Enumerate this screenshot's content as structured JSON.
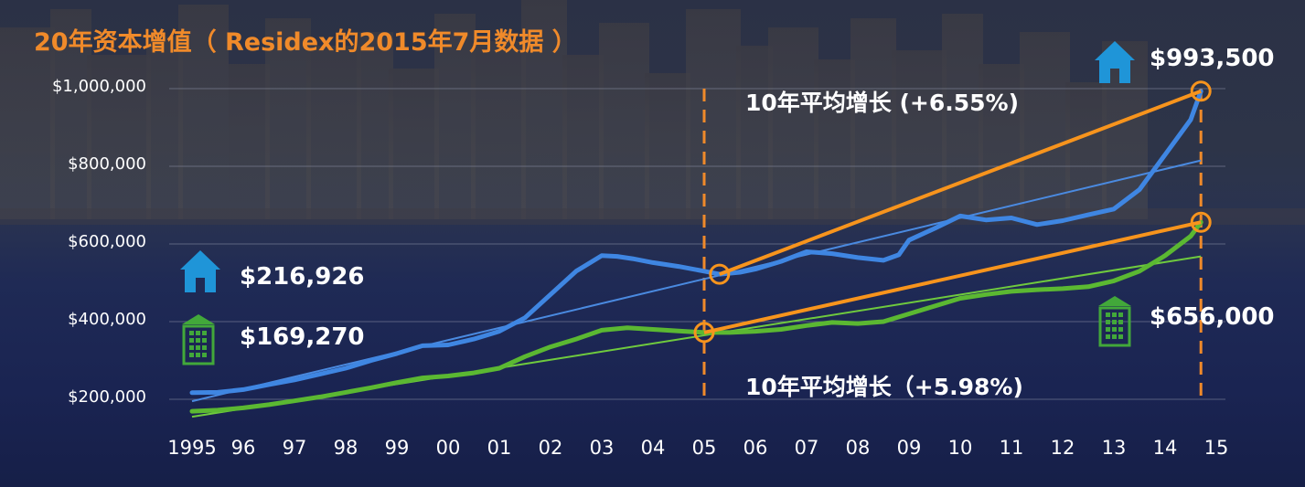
{
  "title": "20年资本增值（ Residex的2015年7月数据 ）",
  "chart_data": {
    "type": "line",
    "x_unit": "year",
    "xlim": [
      1994.8,
      2015.1
    ],
    "ylim": [
      140000,
      1080000
    ],
    "grid": true,
    "y_ticks": [
      {
        "value": 200000,
        "label": "$200,000"
      },
      {
        "value": 400000,
        "label": "$400,000"
      },
      {
        "value": 600000,
        "label": "$600,000"
      },
      {
        "value": 800000,
        "label": "$800,000"
      },
      {
        "value": 1000000,
        "label": "$1,000,000"
      }
    ],
    "x_ticks": [
      {
        "value": 1995,
        "label": "1995"
      },
      {
        "value": 1996,
        "label": "96"
      },
      {
        "value": 1997,
        "label": "97"
      },
      {
        "value": 1998,
        "label": "98"
      },
      {
        "value": 1999,
        "label": "99"
      },
      {
        "value": 2000,
        "label": "00"
      },
      {
        "value": 2001,
        "label": "01"
      },
      {
        "value": 2002,
        "label": "02"
      },
      {
        "value": 2003,
        "label": "03"
      },
      {
        "value": 2004,
        "label": "04"
      },
      {
        "value": 2005,
        "label": "05"
      },
      {
        "value": 2006,
        "label": "06"
      },
      {
        "value": 2007,
        "label": "07"
      },
      {
        "value": 2008,
        "label": "08"
      },
      {
        "value": 2009,
        "label": "09"
      },
      {
        "value": 2010,
        "label": "10"
      },
      {
        "value": 2011,
        "label": "11"
      },
      {
        "value": 2012,
        "label": "12"
      },
      {
        "value": 2013,
        "label": "13"
      },
      {
        "value": 2014,
        "label": "14"
      },
      {
        "value": 2015,
        "label": "15"
      }
    ],
    "series": [
      {
        "color": "#3f86e2",
        "x": [
          1995,
          1995.5,
          1996,
          1996.5,
          1997,
          1997.5,
          1998,
          1998.5,
          1999,
          1999.5,
          2000,
          2000.5,
          2001,
          2001.5,
          2002,
          2002.5,
          2003,
          2003.3,
          2003.6,
          2004,
          2004.5,
          2005,
          2005.3,
          2005.7,
          2006,
          2006.5,
          2007,
          2007.5,
          2008,
          2008.5,
          2008.8,
          2009,
          2009.5,
          2010,
          2010.5,
          2011,
          2011.5,
          2012,
          2012.5,
          2013,
          2013.5,
          2014,
          2014.5,
          2014.7
        ],
        "values": [
          216926,
          218000,
          225000,
          238000,
          250000,
          265000,
          280000,
          300000,
          318000,
          338000,
          340000,
          355000,
          375000,
          410000,
          470000,
          530000,
          570000,
          568000,
          562000,
          552000,
          542000,
          530000,
          522000,
          527000,
          535000,
          555000,
          580000,
          575000,
          565000,
          558000,
          572000,
          610000,
          640000,
          672000,
          662000,
          667000,
          650000,
          660000,
          675000,
          690000,
          740000,
          830000,
          920000,
          993500
        ]
      },
      {
        "color": "#5bb832",
        "x": [
          1995,
          1995.5,
          1996,
          1996.5,
          1997,
          1997.5,
          1998,
          1998.5,
          1999,
          1999.5,
          2000,
          2000.5,
          2001,
          2001.5,
          2002,
          2002.5,
          2003,
          2003.5,
          2004,
          2004.5,
          2005,
          2005.5,
          2006,
          2006.5,
          2007,
          2007.5,
          2008,
          2008.5,
          2009,
          2009.5,
          2010,
          2010.5,
          2011,
          2011.5,
          2012,
          2012.5,
          2013,
          2013.5,
          2014,
          2014.5,
          2014.7
        ],
        "values": [
          169270,
          172000,
          178000,
          186000,
          196000,
          206000,
          218000,
          230000,
          243000,
          255000,
          260000,
          268000,
          280000,
          310000,
          335000,
          355000,
          378000,
          384000,
          380000,
          376000,
          372000,
          372000,
          375000,
          380000,
          390000,
          398000,
          395000,
          400000,
          420000,
          440000,
          460000,
          470000,
          478000,
          482000,
          485000,
          490000,
          505000,
          530000,
          570000,
          620000,
          656000
        ]
      }
    ],
    "trendlines": [
      {
        "color": "#4a8ae0",
        "x": [
          1995,
          2014.7
        ],
        "values": [
          195000,
          815000
        ]
      },
      {
        "color": "#6fca3e",
        "x": [
          1995,
          2014.7
        ],
        "values": [
          155000,
          568000
        ]
      }
    ],
    "growth_lines": [
      {
        "color": "#f7941d",
        "x": [
          2005.3,
          2014.7
        ],
        "values": [
          522000,
          993500
        ],
        "label": "10年平均增长 (+6.55%)"
      },
      {
        "color": "#f7941d",
        "x": [
          2005,
          2014.7
        ],
        "values": [
          372000,
          656000
        ],
        "label": "10年平均增长（+5.98%)"
      }
    ],
    "vertical_markers": [
      2005,
      2014.7
    ],
    "annotations": {
      "house_start": "$216,926",
      "house_end": "$993,500",
      "unit_start": "$169,270",
      "unit_end": "$656,000"
    }
  }
}
